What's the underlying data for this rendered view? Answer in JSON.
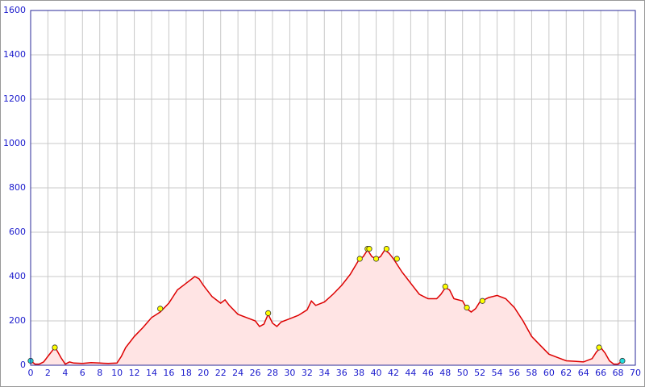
{
  "chart_data": {
    "type": "area",
    "series": [
      {
        "color": "#dd0000",
        "fill": "#ffe4e4",
        "x": [
          0,
          0.5,
          1,
          1.5,
          2,
          2.5,
          2.8,
          3,
          3.5,
          4,
          4.5,
          5,
          6,
          7,
          8,
          9,
          10,
          10.5,
          11,
          12,
          13,
          14,
          15,
          16,
          17,
          18,
          19,
          19.5,
          20,
          21,
          22,
          22.5,
          23,
          24,
          25,
          26,
          26.5,
          27,
          27.5,
          28,
          28.5,
          29,
          30,
          31,
          32,
          32.5,
          33,
          34,
          35,
          36,
          37,
          38,
          38.5,
          39,
          39.5,
          40,
          40.5,
          41,
          41.5,
          42,
          43,
          44,
          45,
          46,
          47,
          47.5,
          48,
          48.5,
          49,
          50,
          50.5,
          51,
          51.5,
          52,
          53,
          54,
          55,
          56,
          57,
          58,
          59,
          60,
          61,
          62,
          63,
          64,
          65,
          65.5,
          66,
          66.5,
          67,
          67.5,
          68,
          68.5
        ],
        "values": [
          20,
          5,
          5,
          15,
          40,
          65,
          80,
          70,
          35,
          5,
          15,
          10,
          8,
          12,
          10,
          8,
          10,
          40,
          80,
          130,
          170,
          215,
          240,
          280,
          340,
          370,
          400,
          390,
          360,
          310,
          280,
          295,
          270,
          230,
          215,
          200,
          175,
          185,
          230,
          190,
          175,
          195,
          210,
          225,
          250,
          290,
          270,
          285,
          320,
          360,
          410,
          475,
          490,
          520,
          490,
          480,
          490,
          520,
          505,
          480,
          420,
          370,
          320,
          300,
          300,
          320,
          350,
          340,
          300,
          290,
          255,
          240,
          255,
          285,
          305,
          315,
          300,
          260,
          200,
          130,
          90,
          50,
          35,
          20,
          18,
          15,
          30,
          60,
          80,
          55,
          20,
          5,
          5,
          20
        ]
      }
    ],
    "markers": [
      {
        "color": "#ffff00",
        "x": [
          2.8,
          15,
          27.5,
          38.1,
          39,
          39.2,
          40,
          41.2,
          42.4,
          48,
          50.5,
          52.3,
          65.8
        ],
        "values": [
          80,
          255,
          235,
          480,
          525,
          525,
          480,
          525,
          480,
          355,
          260,
          290,
          80
        ]
      },
      {
        "color": "#22dddd",
        "x": [
          0,
          68.5
        ],
        "values": [
          20,
          20
        ]
      }
    ],
    "xlim": [
      0,
      70
    ],
    "xticks": [
      0,
      2,
      4,
      6,
      8,
      10,
      12,
      14,
      16,
      18,
      20,
      22,
      24,
      26,
      28,
      30,
      32,
      34,
      36,
      38,
      40,
      42,
      44,
      46,
      48,
      50,
      52,
      54,
      56,
      58,
      60,
      62,
      64,
      66,
      68,
      70
    ],
    "ylim": [
      0,
      1600
    ],
    "yticks": [
      0,
      200,
      400,
      600,
      800,
      1000,
      1200,
      1400,
      1600
    ],
    "grid": true
  }
}
